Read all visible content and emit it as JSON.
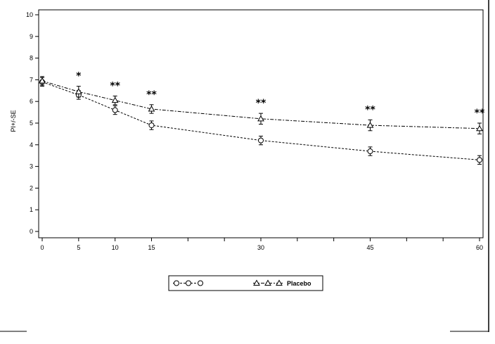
{
  "chart_data": {
    "type": "line",
    "ylabel": "PI+/-SE",
    "xlabel": "",
    "x": [
      0,
      5,
      10,
      15,
      30,
      45,
      60
    ],
    "xticks": [
      0,
      5,
      10,
      15,
      20,
      25,
      30,
      35,
      40,
      45,
      50,
      55,
      60
    ],
    "xtick_labels": [
      "0",
      "5",
      "10",
      "15",
      "",
      "",
      "30",
      "",
      "",
      "45",
      "",
      "",
      "60"
    ],
    "xlim": [
      0,
      60
    ],
    "ylim": [
      0,
      10
    ],
    "yticks": [
      0,
      1,
      2,
      3,
      4,
      5,
      6,
      7,
      8,
      9,
      10
    ],
    "grid": false,
    "legend_position": "bottom-center",
    "series": [
      {
        "name": "",
        "marker": "circle",
        "values": [
          6.9,
          6.3,
          5.6,
          4.9,
          4.2,
          3.7,
          3.3
        ],
        "errors": [
          0.2,
          0.2,
          0.2,
          0.2,
          0.2,
          0.2,
          0.2
        ]
      },
      {
        "name": "Placebo",
        "marker": "triangle",
        "values": [
          6.95,
          6.45,
          6.05,
          5.65,
          5.2,
          4.9,
          4.75
        ],
        "errors": [
          0.2,
          0.25,
          0.2,
          0.2,
          0.25,
          0.25,
          0.25
        ]
      }
    ],
    "annotations": [
      {
        "x": 5,
        "text": "*"
      },
      {
        "x": 10,
        "text": "**"
      },
      {
        "x": 15,
        "text": "**"
      },
      {
        "x": 30,
        "text": "**"
      },
      {
        "x": 45,
        "text": "**"
      },
      {
        "x": 60,
        "text": "**"
      }
    ]
  }
}
